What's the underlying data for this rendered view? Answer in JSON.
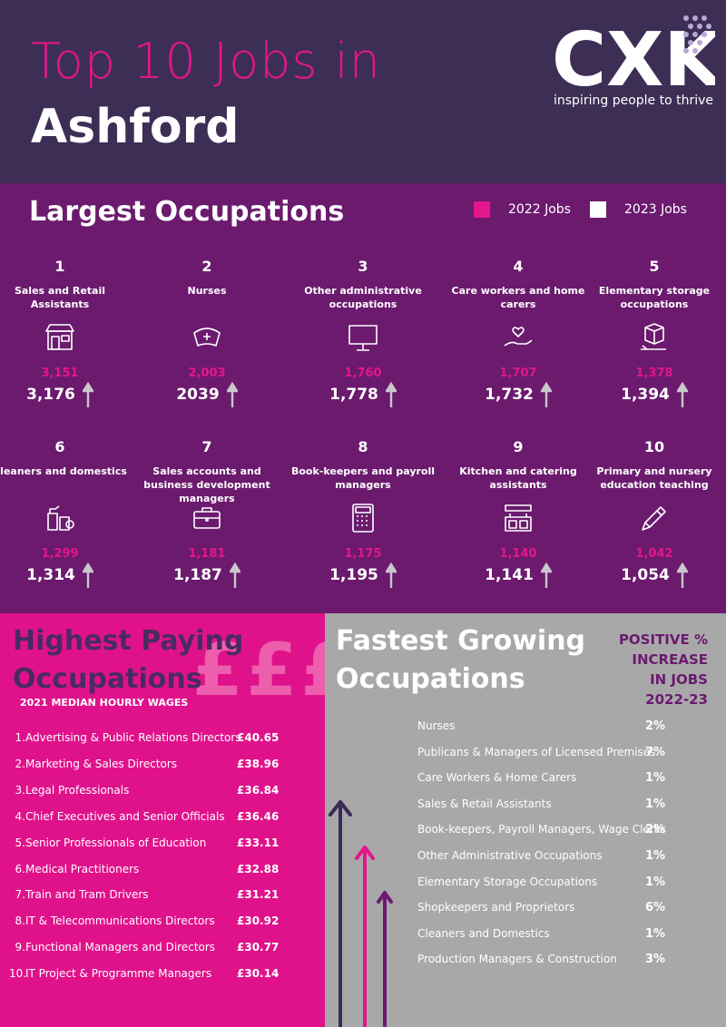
{
  "header": {
    "title_line1": "Top 10 Jobs in",
    "title_line2": "Ashford",
    "logo_text": "CXK",
    "tagline": "inspiring people to thrive"
  },
  "occupations": {
    "title": "Largest Occupations",
    "legend": [
      {
        "label": "2022 Jobs",
        "color": "#e3168c"
      },
      {
        "label": "2023 Jobs",
        "color": "#ffffff"
      }
    ],
    "jobs": [
      {
        "rank": "1",
        "name": "Sales and Retail Assistants",
        "icon": "shop-icon",
        "v2022": "3,151",
        "v2023": "3,176"
      },
      {
        "rank": "2",
        "name": "Nurses",
        "icon": "nurse-cap-icon",
        "v2022": "2,003",
        "v2023": "2039"
      },
      {
        "rank": "3",
        "name": "Other administrative occupations",
        "icon": "monitor-icon",
        "v2022": "1,760",
        "v2023": "1,778"
      },
      {
        "rank": "4",
        "name": "Care workers and home carers",
        "icon": "caring-hands-icon",
        "v2022": "1,707",
        "v2023": "1,732"
      },
      {
        "rank": "5",
        "name": "Elementary storage occupations",
        "icon": "package-icon",
        "v2022": "1,378",
        "v2023": "1,394"
      },
      {
        "rank": "6",
        "name": "Cleaners and domestics",
        "icon": "cleaning-supplies-icon",
        "v2022": "1,299",
        "v2023": "1,314"
      },
      {
        "rank": "7",
        "name": "Sales accounts and business development managers",
        "icon": "briefcase-icon",
        "v2022": "1,181",
        "v2023": "1,187"
      },
      {
        "rank": "8",
        "name": "Book-keepers and payroll managers",
        "icon": "calculator-icon",
        "v2022": "1,175",
        "v2023": "1,195"
      },
      {
        "rank": "9",
        "name": "Kitchen and catering assistants",
        "icon": "kitchen-icon",
        "v2022": "1,140",
        "v2023": "1,141"
      },
      {
        "rank": "10",
        "name": "Primary and nursery education teaching",
        "icon": "pencil-icon",
        "v2022": "1,042",
        "v2023": "1,054"
      }
    ]
  },
  "paying": {
    "title_line1": "Highest Paying",
    "title_line2": "Occupations",
    "pounds": "£££",
    "subtitle": "2021 MEDIAN HOURLY WAGES",
    "items": [
      {
        "n": "1.",
        "label": "Advertising & Public Relations Directors",
        "wage": "£40.65"
      },
      {
        "n": "2.",
        "label": "Marketing & Sales Directors",
        "wage": "£38.96"
      },
      {
        "n": "3.",
        "label": "Legal Professionals",
        "wage": "£36.84"
      },
      {
        "n": "4.",
        "label": "Chief Executives and Senior Officials",
        "wage": "£36.46"
      },
      {
        "n": "5.",
        "label": "Senior Professionals of Education",
        "wage": "£33.11"
      },
      {
        "n": "6.",
        "label": "Medical Practitioners",
        "wage": "£32.88"
      },
      {
        "n": "7.",
        "label": "Train and Tram Drivers",
        "wage": "£31.21"
      },
      {
        "n": "8.",
        "label": "IT & Telecommunications Directors",
        "wage": "£30.92"
      },
      {
        "n": "9.",
        "label": "Functional Managers and Directors",
        "wage": "£30.77"
      },
      {
        "n": "10.",
        "label": "IT Project & Programme Managers",
        "wage": "£30.14"
      }
    ]
  },
  "growing": {
    "title_line1": "Fastest Growing",
    "title_line2": "Occupations",
    "positive_lines": [
      "POSITIVE %",
      "INCREASE",
      "IN JOBS",
      "2022-23"
    ],
    "items": [
      {
        "label": "Nurses",
        "pct": "2%"
      },
      {
        "label": "Publicans & Managers of Licensed Premises",
        "pct": "7%"
      },
      {
        "label": "Care Workers & Home Carers",
        "pct": "1%"
      },
      {
        "label": "Sales & Retail Assistants",
        "pct": "1%"
      },
      {
        "label": "Book-keepers, Payroll Managers, Wage Clerks",
        "pct": "2%"
      },
      {
        "label": "Other Administrative Occupations",
        "pct": "1%"
      },
      {
        "label": "Elementary Storage Occupations",
        "pct": "1%"
      },
      {
        "label": "Shopkeepers and Proprietors",
        "pct": "6%"
      },
      {
        "label": "Cleaners and Domestics",
        "pct": "1%"
      },
      {
        "label": "Production Managers & Construction",
        "pct": "3%"
      }
    ]
  }
}
